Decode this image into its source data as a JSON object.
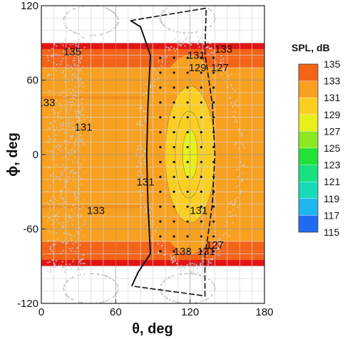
{
  "chart_data": {
    "type": "heatmap",
    "xlabel": "θ, deg",
    "ylabel": "ϕ, deg",
    "xlim": [
      0,
      180
    ],
    "ylim": [
      -120,
      120
    ],
    "xticks": [
      0,
      60,
      120,
      180
    ],
    "yticks": [
      -120,
      -60,
      0,
      60,
      120
    ],
    "grid": true,
    "legend_title": "SPL, dB",
    "legend_placement": "right",
    "color_levels": [
      115,
      117,
      119,
      121,
      123,
      125,
      127,
      129,
      131,
      133,
      135
    ],
    "level_colors": [
      "#0a18e6",
      "#1f6cf2",
      "#1fb6f0",
      "#18d9b8",
      "#19e080",
      "#22e23a",
      "#8de824",
      "#e8ef1c",
      "#fbcf22",
      "#f8a020",
      "#f46418",
      "#e31414"
    ],
    "phi_bands": [
      {
        "phi_range": [
          85,
          90
        ],
        "spl": 136
      },
      {
        "phi_range": [
          78,
          85
        ],
        "spl": 134.5
      },
      {
        "phi_range": [
          70,
          78
        ],
        "spl": 133.5
      },
      {
        "phi_range": [
          60,
          70
        ],
        "spl": 132.5
      },
      {
        "phi_range": [
          -60,
          60
        ],
        "spl": 131.5
      },
      {
        "phi_range": [
          -70,
          -60
        ],
        "spl": 132.5
      },
      {
        "phi_range": [
          -78,
          -70
        ],
        "spl": 133.5
      },
      {
        "phi_range": [
          -85,
          -78
        ],
        "spl": 134.5
      },
      {
        "phi_range": [
          -90,
          -85
        ],
        "spl": 136
      }
    ],
    "contour_labels": [
      {
        "text": "135",
        "theta": 25,
        "phi": 83
      },
      {
        "text": "133",
        "theta": 4,
        "phi": 42
      },
      {
        "text": "131",
        "theta": 34,
        "phi": 22
      },
      {
        "text": "133",
        "theta": 44,
        "phi": -45
      },
      {
        "text": "131",
        "theta": 84,
        "phi": -22
      },
      {
        "text": "131",
        "theta": 125,
        "phi": 80
      },
      {
        "text": "133",
        "theta": 147,
        "phi": 85
      },
      {
        "text": "129",
        "theta": 126,
        "phi": 70
      },
      {
        "text": "127",
        "theta": 144,
        "phi": 70
      },
      {
        "text": "131",
        "theta": 127,
        "phi": -45
      },
      {
        "text": "127",
        "theta": 140,
        "phi": -73
      },
      {
        "text": "133",
        "theta": 114,
        "phi": -78
      },
      {
        "text": "131",
        "theta": 133,
        "phi": -78
      }
    ],
    "central_region": {
      "theta_range": [
        87,
        152
      ],
      "phi_range": [
        -80,
        80
      ],
      "inner_contours": [
        {
          "spl": 130,
          "theta_range": [
            100,
            140
          ],
          "phi_range": [
            -55,
            55
          ]
        },
        {
          "spl": 129,
          "theta_range": [
            108,
            130
          ],
          "phi_range": [
            -35,
            35
          ]
        },
        {
          "spl": 128,
          "theta_range": [
            114,
            126
          ],
          "phi_range": [
            -20,
            20
          ]
        }
      ]
    },
    "boundary_dots_theta": [
      96,
      107,
      118,
      129,
      139
    ],
    "boundary_dots_phi": [
      -78,
      -66,
      -54,
      -42,
      -30,
      -18,
      -6,
      6,
      18,
      30,
      42,
      54,
      66,
      78
    ]
  }
}
